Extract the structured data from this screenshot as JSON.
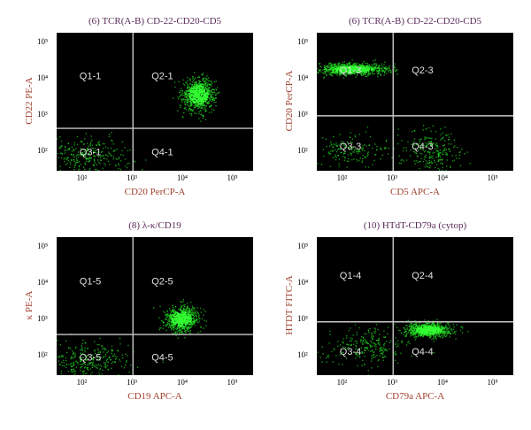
{
  "chart_data": [
    {
      "type": "scatter",
      "title": "(6) TCR(A-B) CD-22-CD20-CD5",
      "xlabel": "CD20 PerCP-A",
      "ylabel": "CD22 PE-A",
      "xscale": "log",
      "yscale": "log",
      "xlim": [
        30,
        250000
      ],
      "ylim": [
        30,
        200000
      ],
      "x_ticks": [
        "10^2",
        "10^3",
        "10^4",
        "10^5"
      ],
      "y_ticks": [
        "10^2",
        "10^3",
        "10^4",
        "10^5"
      ],
      "gate": {
        "x": 1000,
        "y": 450
      },
      "quadrants": [
        "Q1-1",
        "Q2-1",
        "Q3-1",
        "Q4-1"
      ],
      "populations": [
        {
          "center": [
            20000,
            4000
          ],
          "spread": [
            0.16,
            0.22
          ],
          "count": 900,
          "shape": "ellipse"
        },
        {
          "center": [
            120,
            80
          ],
          "spread": [
            0.45,
            0.25
          ],
          "count": 300,
          "shape": "diffuse"
        }
      ],
      "dot_color": "#22dd22"
    },
    {
      "type": "scatter",
      "title": "(6) TCR(A-B) CD-22-CD20-CD5",
      "xlabel": "CD5 APC-A",
      "ylabel": "CD20 PerCP-A",
      "xscale": "log",
      "yscale": "log",
      "xlim": [
        30,
        250000
      ],
      "ylim": [
        30,
        200000
      ],
      "x_ticks": [
        "10^2",
        "10^3",
        "10^4",
        "10^5"
      ],
      "y_ticks": [
        "10^2",
        "10^3",
        "10^4",
        "10^5"
      ],
      "gate": {
        "x": 1000,
        "y": 1000
      },
      "quadrants": [
        "Q1-3",
        "Q2-3",
        "Q3-3",
        "Q4-3"
      ],
      "populations": [
        {
          "center": [
            150,
            20000
          ],
          "spread": [
            0.35,
            0.08
          ],
          "count": 900,
          "shape": "band"
        },
        {
          "center": [
            6000,
            100
          ],
          "spread": [
            0.3,
            0.3
          ],
          "count": 250,
          "shape": "diffuse"
        },
        {
          "center": [
            150,
            120
          ],
          "spread": [
            0.4,
            0.25
          ],
          "count": 180,
          "shape": "diffuse"
        }
      ],
      "dot_color": "#22dd22"
    },
    {
      "type": "scatter",
      "title": "(8) λ-κ/CD19",
      "xlabel": "CD19 APC-A",
      "ylabel": "κ PE-A",
      "xscale": "log",
      "yscale": "log",
      "xlim": [
        30,
        250000
      ],
      "ylim": [
        30,
        200000
      ],
      "x_ticks": [
        "10^2",
        "10^3",
        "10^4",
        "10^5"
      ],
      "y_ticks": [
        "10^2",
        "10^3",
        "10^4",
        "10^5"
      ],
      "gate": {
        "x": 1000,
        "y": 400
      },
      "quadrants": [
        "Q1-5",
        "Q2-5",
        "Q3-5",
        "Q4-5"
      ],
      "populations": [
        {
          "center": [
            9000,
            1100
          ],
          "spread": [
            0.17,
            0.18
          ],
          "count": 800,
          "shape": "ellipse"
        },
        {
          "center": [
            120,
            80
          ],
          "spread": [
            0.45,
            0.25
          ],
          "count": 300,
          "shape": "diffuse"
        }
      ],
      "dot_color": "#22dd22"
    },
    {
      "type": "scatter",
      "title": "(10) HTdT-CD79a (cytop)",
      "xlabel": "CD79a APC-A",
      "ylabel": "HTDT FITC-A",
      "xscale": "log",
      "yscale": "log",
      "xlim": [
        30,
        250000
      ],
      "ylim": [
        30,
        200000
      ],
      "x_ticks": [
        "10^2",
        "10^3",
        "10^4",
        "10^5"
      ],
      "y_ticks": [
        "10^2",
        "10^3",
        "10^4",
        "10^5"
      ],
      "gate": {
        "x": 1000,
        "y": 900
      },
      "quadrants": [
        "Q1-4",
        "Q2-4",
        "Q3-4",
        "Q4-4"
      ],
      "populations": [
        {
          "center": [
            5000,
            550
          ],
          "spread": [
            0.22,
            0.1
          ],
          "count": 900,
          "shape": "ellipse"
        },
        {
          "center": [
            300,
            200
          ],
          "spread": [
            0.4,
            0.25
          ],
          "count": 250,
          "shape": "diffuse"
        }
      ],
      "dot_color": "#22dd22"
    }
  ]
}
